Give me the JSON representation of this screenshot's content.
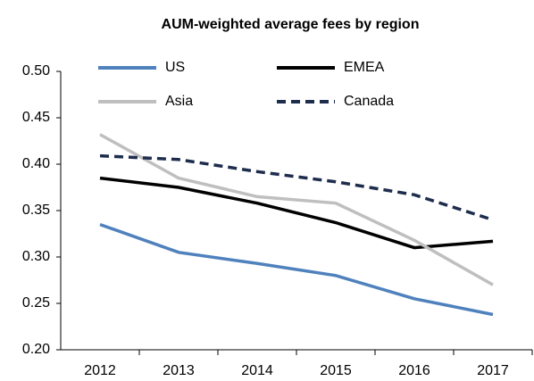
{
  "chart_data": {
    "type": "line",
    "title": "AUM-weighted average fees by region",
    "categories": [
      "2012",
      "2013",
      "2014",
      "2015",
      "2016",
      "2017"
    ],
    "series": [
      {
        "name": "US",
        "color": "#4f81bd",
        "style": "solid",
        "values": [
          0.335,
          0.305,
          0.293,
          0.28,
          0.255,
          0.238
        ]
      },
      {
        "name": "EMEA",
        "color": "#000000",
        "style": "solid",
        "values": [
          0.385,
          0.375,
          0.358,
          0.337,
          0.31,
          0.317
        ]
      },
      {
        "name": "Asia",
        "color": "#bfbfbf",
        "style": "solid",
        "values": [
          0.432,
          0.385,
          0.365,
          0.358,
          0.318,
          0.27
        ]
      },
      {
        "name": "Canada",
        "color": "#1f2d4d",
        "style": "dashed",
        "values": [
          0.409,
          0.405,
          0.392,
          0.381,
          0.367,
          0.34
        ]
      }
    ],
    "ylim": [
      0.2,
      0.5
    ],
    "yticks": [
      {
        "value": 0.2,
        "label": "0.20"
      },
      0.25,
      {
        "value": 0.3,
        "label": "0.30"
      },
      0.35,
      {
        "value": 0.4,
        "label": "0.40"
      },
      0.45,
      {
        "value": 0.5,
        "label": "0.50"
      }
    ],
    "grid": false
  }
}
